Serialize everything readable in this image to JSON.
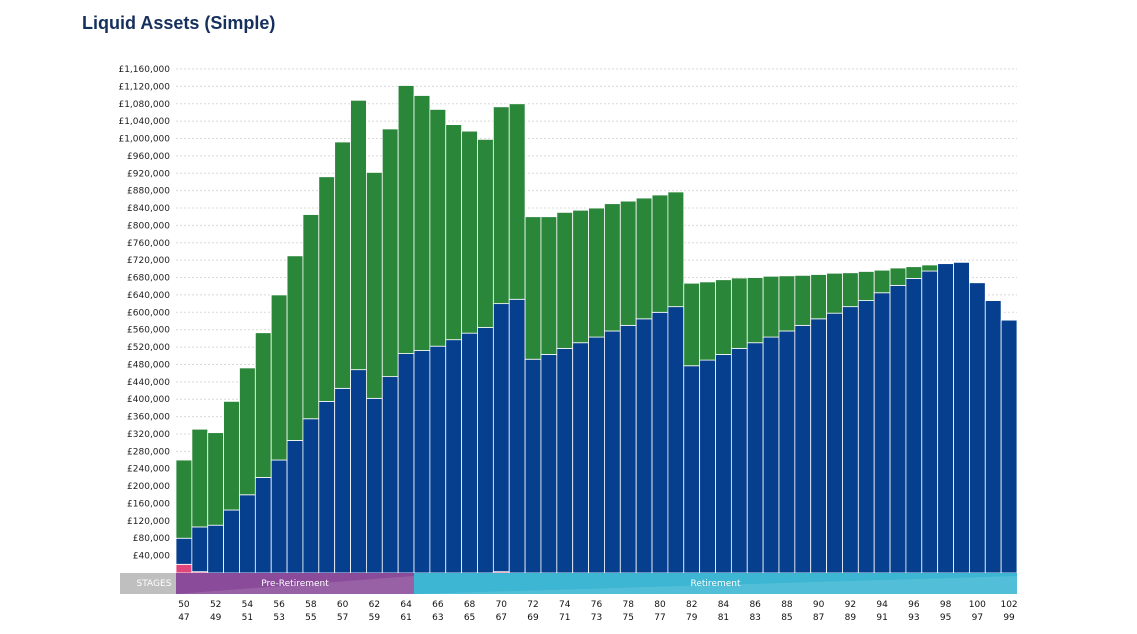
{
  "chart_data": {
    "type": "bar",
    "stacked": true,
    "title": "Liquid Assets (Simple)",
    "ylim": [
      0,
      1160000
    ],
    "yticks": [
      "£40,000",
      "£80,000",
      "£120,000",
      "£160,000",
      "£200,000",
      "£240,000",
      "£280,000",
      "£320,000",
      "£360,000",
      "£400,000",
      "£440,000",
      "£480,000",
      "£520,000",
      "£560,000",
      "£600,000",
      "£640,000",
      "£680,000",
      "£720,000",
      "£760,000",
      "£800,000",
      "£840,000",
      "£880,000",
      "£920,000",
      "£960,000",
      "£1,000,000",
      "£1,040,000",
      "£1,080,000",
      "£1,120,000",
      "£1,160,000"
    ],
    "ytick_values": [
      40000,
      80000,
      120000,
      160000,
      200000,
      240000,
      280000,
      320000,
      360000,
      400000,
      440000,
      480000,
      520000,
      560000,
      600000,
      640000,
      680000,
      720000,
      760000,
      800000,
      840000,
      880000,
      920000,
      960000,
      1000000,
      1040000,
      1080000,
      1120000,
      1160000
    ],
    "grid": true,
    "x_ages_primary": [
      50,
      51,
      52,
      53,
      54,
      55,
      56,
      57,
      58,
      59,
      60,
      61,
      62,
      63,
      64,
      65,
      66,
      67,
      68,
      69,
      70,
      71,
      72,
      73,
      74,
      75,
      76,
      77,
      78,
      79,
      80,
      81,
      82,
      83,
      84,
      85,
      86,
      87,
      88,
      89,
      90,
      91,
      92,
      93,
      94,
      95,
      96,
      97,
      98,
      99,
      100,
      101,
      102
    ],
    "x_labels_primary": [
      "50",
      "52",
      "54",
      "56",
      "58",
      "60",
      "62",
      "64",
      "66",
      "68",
      "70",
      "72",
      "74",
      "76",
      "78",
      "80",
      "82",
      "84",
      "86",
      "88",
      "90",
      "92",
      "94",
      "96",
      "98",
      "100",
      "102"
    ],
    "x_labels_secondary": [
      "47",
      "49",
      "51",
      "53",
      "55",
      "57",
      "59",
      "61",
      "63",
      "65",
      "67",
      "69",
      "71",
      "73",
      "75",
      "77",
      "79",
      "81",
      "83",
      "85",
      "87",
      "89",
      "91",
      "93",
      "95",
      "97",
      "99"
    ],
    "series": [
      {
        "color": "#e0457b",
        "values": [
          20000,
          3000,
          0,
          0,
          0,
          0,
          0,
          0,
          0,
          0,
          0,
          0,
          0,
          0,
          0,
          0,
          0,
          0,
          0,
          0,
          3000,
          0,
          0,
          0,
          0,
          0,
          0,
          0,
          0,
          0,
          0,
          0,
          0,
          0,
          0,
          0,
          0,
          0,
          0,
          0,
          0,
          0,
          0,
          0,
          0,
          0,
          0,
          0,
          0,
          0,
          0,
          0,
          0
        ]
      },
      {
        "color": "#063f8e",
        "values": [
          60000,
          103000,
          110000,
          145000,
          180000,
          220000,
          260000,
          305000,
          355000,
          395000,
          425000,
          468000,
          402000,
          452000,
          505000,
          512000,
          522000,
          537000,
          552000,
          565000,
          617000,
          630000,
          492000,
          503000,
          517000,
          530000,
          543000,
          557000,
          570000,
          585000,
          600000,
          613000,
          477000,
          490000,
          503000,
          517000,
          530000,
          543000,
          557000,
          570000,
          585000,
          598000,
          613000,
          627000,
          645000,
          662000,
          678000,
          695000,
          712000,
          715000,
          668000,
          627000,
          582000
        ]
      },
      {
        "color": "#2a8639",
        "values": [
          180000,
          225000,
          213000,
          250000,
          292000,
          333000,
          380000,
          425000,
          470000,
          517000,
          567000,
          620000,
          520000,
          570000,
          617000,
          587000,
          545000,
          495000,
          465000,
          433000,
          453000,
          450000,
          328000,
          317000,
          313000,
          305000,
          297000,
          293000,
          286000,
          278000,
          270000,
          264000,
          190000,
          180000,
          172000,
          162000,
          150000,
          140000,
          127000,
          115000,
          102000,
          92000,
          78000,
          67000,
          52000,
          40000,
          27000,
          14000,
          0,
          0,
          0,
          0,
          0
        ]
      }
    ],
    "stages": {
      "label": "STAGES",
      "items": [
        {
          "name": "Pre-Retirement",
          "from_age": 50,
          "to_age": 64,
          "color": "#8a4c9a"
        },
        {
          "name": "Retirement",
          "from_age": 65,
          "to_age": 102,
          "color": "#3cb6d2"
        }
      ]
    }
  }
}
